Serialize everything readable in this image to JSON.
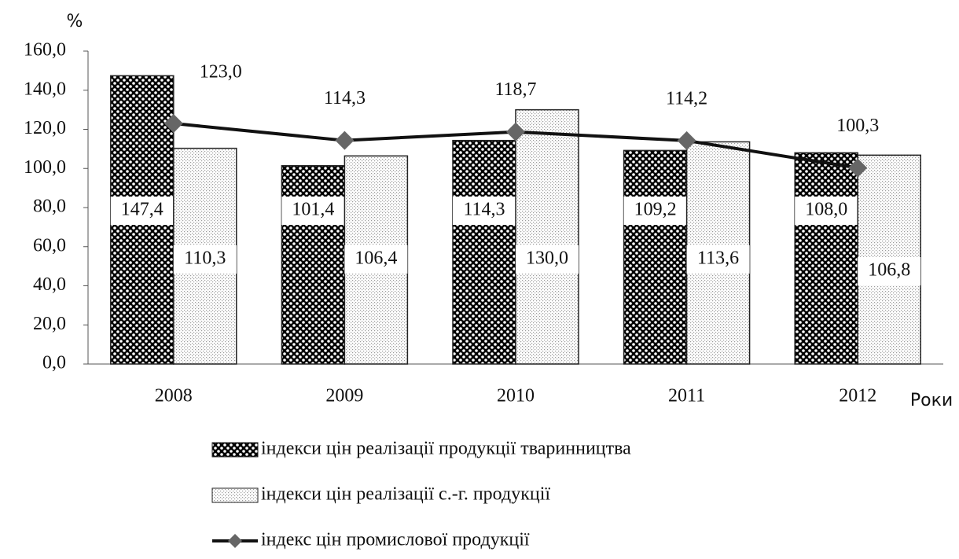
{
  "chart_data": {
    "type": "bar",
    "y_label": "%",
    "x_label": "Роки",
    "categories": [
      "2008",
      "2009",
      "2010",
      "2011",
      "2012"
    ],
    "series": [
      {
        "name": "індекси цін реалізації продукції тваринництва",
        "type": "bar",
        "color": "#000000",
        "pattern": "checker",
        "values": [
          147.4,
          101.4,
          114.3,
          109.2,
          108.0
        ],
        "value_labels": [
          "147,4",
          "101,4",
          "114,3",
          "109,2",
          "108,0"
        ]
      },
      {
        "name": "індекси цін реалізації с.-г. продукції",
        "type": "bar",
        "color": "#9a9a9a",
        "pattern": "stipple",
        "values": [
          110.3,
          106.4,
          130.0,
          113.6,
          106.8
        ],
        "value_labels": [
          "110,3",
          "106,4",
          "130,0",
          "113,6",
          "106,8"
        ]
      },
      {
        "name": "індекс цін промислової продукції",
        "type": "line",
        "color": "#111111",
        "values": [
          123.0,
          114.3,
          118.7,
          114.2,
          100.3
        ],
        "value_labels": [
          "123,0",
          "114,3",
          "118,7",
          "114,2",
          "100,3"
        ]
      }
    ],
    "ylim": [
      0,
      160
    ],
    "yticks": [
      {
        "value": 0,
        "label": "0,0"
      },
      {
        "value": 20,
        "label": "20,0"
      },
      {
        "value": 40,
        "label": "40,0"
      },
      {
        "value": 60,
        "label": "60,0"
      },
      {
        "value": 80,
        "label": "80,0"
      },
      {
        "value": 100,
        "label": "100,0"
      },
      {
        "value": 120,
        "label": "120,0"
      },
      {
        "value": 140,
        "label": "140,0"
      },
      {
        "value": 160,
        "label": "160,0"
      }
    ]
  }
}
